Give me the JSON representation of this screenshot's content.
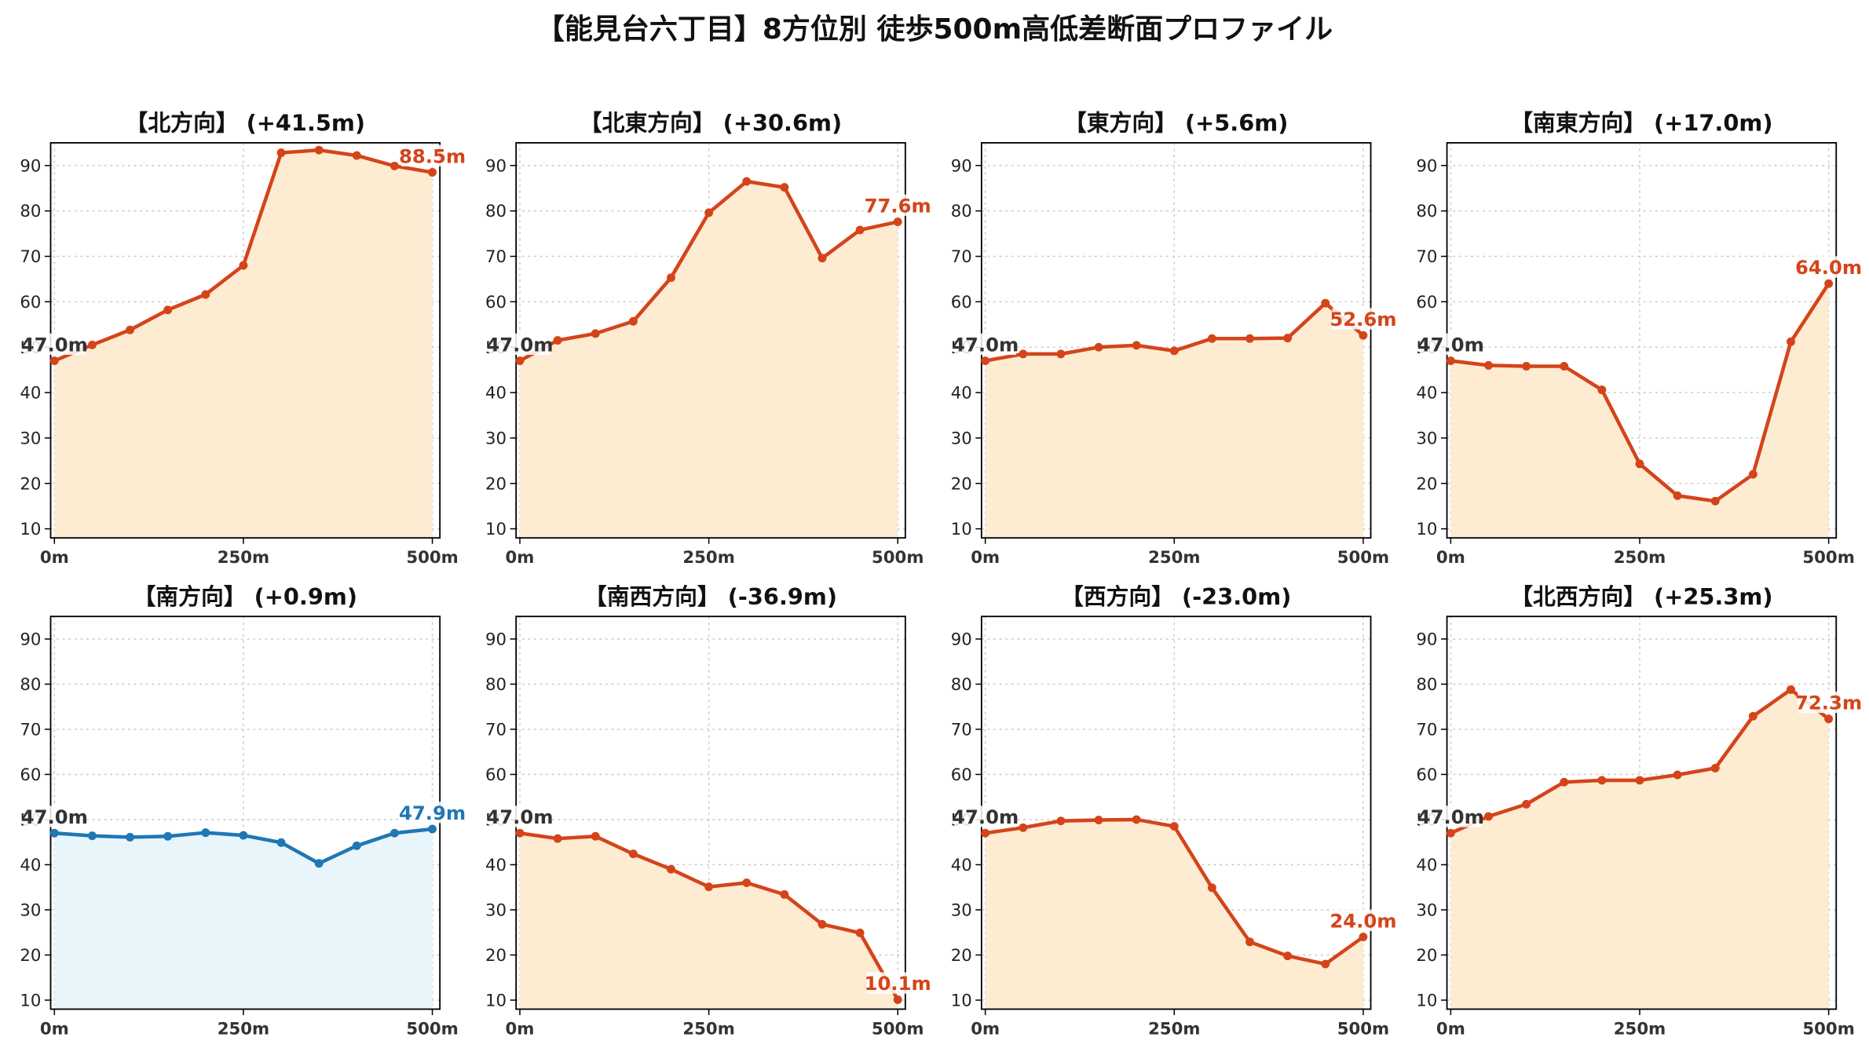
{
  "suptitle": "【能見台六丁目】8方位別 徒歩500m高低差断面プロファイル",
  "colors": {
    "up_line": "#d4441a",
    "up_fill": "#fdebd2",
    "flat_line": "#1f77b4",
    "flat_fill": "#e8f5fb",
    "start_label": "#333333"
  },
  "chart_data": [
    {
      "type": "area",
      "title": "【北方向】 (+41.5m)",
      "x": [
        0,
        50,
        100,
        150,
        200,
        250,
        300,
        350,
        400,
        450,
        500
      ],
      "values": [
        47.0,
        50.5,
        53.8,
        58.2,
        61.6,
        68.0,
        92.8,
        93.4,
        92.2,
        89.9,
        88.5
      ],
      "start_label": "47.0m",
      "end_label": "88.5m",
      "xticklabels": [
        "0m",
        "250m",
        "500m"
      ],
      "yticks": [
        10,
        20,
        30,
        40,
        50,
        60,
        70,
        80,
        90
      ],
      "ylim": [
        8,
        95
      ],
      "xlim": [
        -5,
        510
      ],
      "grid": true,
      "color": "up"
    },
    {
      "type": "area",
      "title": "【北東方向】 (+30.6m)",
      "x": [
        0,
        50,
        100,
        150,
        200,
        250,
        300,
        350,
        400,
        450,
        500
      ],
      "values": [
        47.0,
        51.5,
        53.0,
        55.7,
        65.3,
        79.6,
        86.5,
        85.2,
        69.6,
        75.8,
        77.6
      ],
      "start_label": "47.0m",
      "end_label": "77.6m",
      "xticklabels": [
        "0m",
        "250m",
        "500m"
      ],
      "yticks": [
        10,
        20,
        30,
        40,
        50,
        60,
        70,
        80,
        90
      ],
      "ylim": [
        8,
        95
      ],
      "xlim": [
        -5,
        510
      ],
      "grid": true,
      "color": "up"
    },
    {
      "type": "area",
      "title": "【東方向】 (+5.6m)",
      "x": [
        0,
        50,
        100,
        150,
        200,
        250,
        300,
        350,
        400,
        450,
        500
      ],
      "values": [
        47.0,
        48.5,
        48.5,
        50.0,
        50.4,
        49.2,
        51.9,
        51.9,
        52.0,
        59.7,
        52.6
      ],
      "start_label": "47.0m",
      "end_label": "52.6m",
      "xticklabels": [
        "0m",
        "250m",
        "500m"
      ],
      "yticks": [
        10,
        20,
        30,
        40,
        50,
        60,
        70,
        80,
        90
      ],
      "ylim": [
        8,
        95
      ],
      "xlim": [
        -5,
        510
      ],
      "grid": true,
      "color": "up"
    },
    {
      "type": "area",
      "title": "【南東方向】 (+17.0m)",
      "x": [
        0,
        50,
        100,
        150,
        200,
        250,
        300,
        350,
        400,
        450,
        500
      ],
      "values": [
        47.0,
        46.0,
        45.8,
        45.8,
        40.6,
        24.3,
        17.3,
        16.1,
        22.0,
        51.2,
        64.0
      ],
      "start_label": "47.0m",
      "end_label": "64.0m",
      "xticklabels": [
        "0m",
        "250m",
        "500m"
      ],
      "yticks": [
        10,
        20,
        30,
        40,
        50,
        60,
        70,
        80,
        90
      ],
      "ylim": [
        8,
        95
      ],
      "xlim": [
        -5,
        510
      ],
      "grid": true,
      "color": "up"
    },
    {
      "type": "area",
      "title": "【南方向】 (+0.9m)",
      "x": [
        0,
        50,
        100,
        150,
        200,
        250,
        300,
        350,
        400,
        450,
        500
      ],
      "values": [
        47.0,
        46.4,
        46.1,
        46.3,
        47.1,
        46.5,
        44.9,
        40.3,
        44.2,
        47.0,
        47.9
      ],
      "start_label": "47.0m",
      "end_label": "47.9m",
      "xticklabels": [
        "0m",
        "250m",
        "500m"
      ],
      "yticks": [
        10,
        20,
        30,
        40,
        50,
        60,
        70,
        80,
        90
      ],
      "ylim": [
        8,
        95
      ],
      "xlim": [
        -5,
        510
      ],
      "grid": true,
      "color": "flat"
    },
    {
      "type": "area",
      "title": "【南西方向】 (-36.9m)",
      "x": [
        0,
        50,
        100,
        150,
        200,
        250,
        300,
        350,
        400,
        450,
        500
      ],
      "values": [
        47.0,
        45.8,
        46.3,
        42.4,
        39.0,
        35.1,
        36.0,
        33.4,
        26.8,
        24.9,
        10.1
      ],
      "start_label": "47.0m",
      "end_label": "10.1m",
      "xticklabels": [
        "0m",
        "250m",
        "500m"
      ],
      "yticks": [
        10,
        20,
        30,
        40,
        50,
        60,
        70,
        80,
        90
      ],
      "ylim": [
        8,
        95
      ],
      "xlim": [
        -5,
        510
      ],
      "grid": true,
      "color": "up"
    },
    {
      "type": "area",
      "title": "【西方向】 (-23.0m)",
      "x": [
        0,
        50,
        100,
        150,
        200,
        250,
        300,
        350,
        400,
        450,
        500
      ],
      "values": [
        47.0,
        48.2,
        49.7,
        49.9,
        50.0,
        48.5,
        34.9,
        22.9,
        19.8,
        18.0,
        24.0
      ],
      "start_label": "47.0m",
      "end_label": "24.0m",
      "xticklabels": [
        "0m",
        "250m",
        "500m"
      ],
      "yticks": [
        10,
        20,
        30,
        40,
        50,
        60,
        70,
        80,
        90
      ],
      "ylim": [
        8,
        95
      ],
      "xlim": [
        -5,
        510
      ],
      "grid": true,
      "color": "up"
    },
    {
      "type": "area",
      "title": "【北西方向】 (+25.3m)",
      "x": [
        0,
        50,
        100,
        150,
        200,
        250,
        300,
        350,
        400,
        450,
        500
      ],
      "values": [
        47.0,
        50.7,
        53.4,
        58.3,
        58.7,
        58.7,
        59.9,
        61.4,
        72.9,
        78.8,
        72.3
      ],
      "start_label": "47.0m",
      "end_label": "72.3m",
      "xticklabels": [
        "0m",
        "250m",
        "500m"
      ],
      "yticks": [
        10,
        20,
        30,
        40,
        50,
        60,
        70,
        80,
        90
      ],
      "ylim": [
        8,
        95
      ],
      "xlim": [
        -5,
        510
      ],
      "grid": true,
      "color": "up"
    }
  ]
}
